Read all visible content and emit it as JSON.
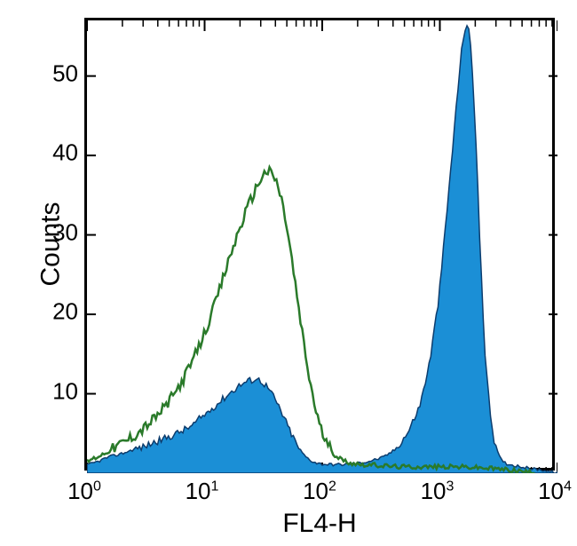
{
  "chart": {
    "type": "histogram",
    "background_color": "#ffffff",
    "border_color": "#000000",
    "border_width": 3,
    "ylabel": "Counts",
    "xlabel": "FL4-H",
    "label_fontsize": 30,
    "tick_fontsize": 26,
    "x_scale": "log",
    "xlim": [
      1,
      10000
    ],
    "ylim": [
      0,
      57
    ],
    "x_ticks": [
      {
        "value": 1,
        "label": "10",
        "exp": "0"
      },
      {
        "value": 10,
        "label": "10",
        "exp": "1"
      },
      {
        "value": 100,
        "label": "10",
        "exp": "2"
      },
      {
        "value": 1000,
        "label": "10",
        "exp": "3"
      },
      {
        "value": 10000,
        "label": "10",
        "exp": "4"
      }
    ],
    "y_ticks": [
      10,
      20,
      30,
      40,
      50
    ],
    "series": [
      {
        "name": "filled-blue",
        "fill_color": "#1b8fd6",
        "stroke_color": "#0d3d6e",
        "stroke_width": 1.5,
        "filled": true,
        "data": [
          [
            1.0,
            1
          ],
          [
            1.25,
            1.5
          ],
          [
            1.5,
            2
          ],
          [
            1.8,
            2.3
          ],
          [
            2.1,
            2.6
          ],
          [
            2.5,
            3
          ],
          [
            3.0,
            3.3
          ],
          [
            3.6,
            3.8
          ],
          [
            4.3,
            4.2
          ],
          [
            5.0,
            4.6
          ],
          [
            5.8,
            5
          ],
          [
            6.8,
            5.5
          ],
          [
            7.9,
            6
          ],
          [
            9.0,
            6.8
          ],
          [
            10.3,
            7.5
          ],
          [
            11.8,
            8.3
          ],
          [
            13.5,
            9
          ],
          [
            15.5,
            9.8
          ],
          [
            17.4,
            10.4
          ],
          [
            19.5,
            11
          ],
          [
            21.8,
            11.4
          ],
          [
            24.5,
            11.7
          ],
          [
            27.5,
            11.9
          ],
          [
            30.5,
            11.6
          ],
          [
            33.0,
            11.1
          ],
          [
            36.2,
            10.3
          ],
          [
            40.0,
            9.2
          ],
          [
            44.6,
            7.8
          ],
          [
            50.0,
            6.2
          ],
          [
            56.2,
            4.6
          ],
          [
            63.0,
            3.2
          ],
          [
            70.7,
            2.2
          ],
          [
            80.0,
            1.6
          ],
          [
            89.0,
            1.3
          ],
          [
            100.0,
            1.15
          ],
          [
            120.0,
            1.1
          ],
          [
            150.0,
            1.1
          ],
          [
            190.0,
            1.2
          ],
          [
            250.0,
            1.5
          ],
          [
            330.0,
            2.0
          ],
          [
            420.0,
            3.0
          ],
          [
            540.0,
            5.2
          ],
          [
            680.0,
            8.6
          ],
          [
            820.0,
            14.0
          ],
          [
            980.0,
            22.0
          ],
          [
            1150.0,
            33.0
          ],
          [
            1340.0,
            44.0
          ],
          [
            1500.0,
            52.0
          ],
          [
            1600.0,
            55.5
          ],
          [
            1700.0,
            56.5
          ],
          [
            1800.0,
            55.0
          ],
          [
            1900.0,
            50.0
          ],
          [
            2050.0,
            40.5
          ],
          [
            2200.0,
            28.0
          ],
          [
            2400.0,
            16.0
          ],
          [
            2650.0,
            8.0
          ],
          [
            2950.0,
            3.4
          ],
          [
            3300.0,
            1.7
          ],
          [
            3700.0,
            1.2
          ],
          [
            4200.0,
            1.0
          ],
          [
            4700.0,
            0.9
          ],
          [
            5300.0,
            0.7
          ],
          [
            6200.0,
            0.55
          ],
          [
            7500.0,
            0.4
          ],
          [
            9999.0,
            0
          ]
        ],
        "noise_amp": 0.9
      },
      {
        "name": "green-outline",
        "stroke_color": "#2a7a2a",
        "stroke_width": 2.5,
        "filled": false,
        "data": [
          [
            1.0,
            1.5
          ],
          [
            1.2,
            2.0
          ],
          [
            1.45,
            2.6
          ],
          [
            1.75,
            3.3
          ],
          [
            2.1,
            4.0
          ],
          [
            2.55,
            4.8
          ],
          [
            3.0,
            5.6
          ],
          [
            3.5,
            6.5
          ],
          [
            4.1,
            7.5
          ],
          [
            4.8,
            8.7
          ],
          [
            5.6,
            10.1
          ],
          [
            6.5,
            11.7
          ],
          [
            7.6,
            13.6
          ],
          [
            8.9,
            15.8
          ],
          [
            10.4,
            18.3
          ],
          [
            12.1,
            21.0
          ],
          [
            14.0,
            24.0
          ],
          [
            16.2,
            27.0
          ],
          [
            18.8,
            29.8
          ],
          [
            21.7,
            32.4
          ],
          [
            25.0,
            34.6
          ],
          [
            28.0,
            36.2
          ],
          [
            31.0,
            37.5
          ],
          [
            34.0,
            38.0
          ],
          [
            37.0,
            37.8
          ],
          [
            40.5,
            36.8
          ],
          [
            44.5,
            34.8
          ],
          [
            49.0,
            31.8
          ],
          [
            54.0,
            27.8
          ],
          [
            60.0,
            23.0
          ],
          [
            67.0,
            18.0
          ],
          [
            75.0,
            13.2
          ],
          [
            85.0,
            9.0
          ],
          [
            96.0,
            5.8
          ],
          [
            110.0,
            3.6
          ],
          [
            128.0,
            2.3
          ],
          [
            150.0,
            1.6
          ],
          [
            180.0,
            1.25
          ],
          [
            220.0,
            1.1
          ],
          [
            280.0,
            1.0
          ],
          [
            360.0,
            0.9
          ],
          [
            470.0,
            0.8
          ],
          [
            620.0,
            0.8
          ],
          [
            820.0,
            0.8
          ],
          [
            1100.0,
            0.8
          ],
          [
            1500.0,
            0.8
          ],
          [
            2100.0,
            0.7
          ],
          [
            3000.0,
            0.55
          ],
          [
            4400.0,
            0.35
          ],
          [
            6400.0,
            0.0
          ]
        ],
        "noise_amp": 1.4
      }
    ]
  }
}
